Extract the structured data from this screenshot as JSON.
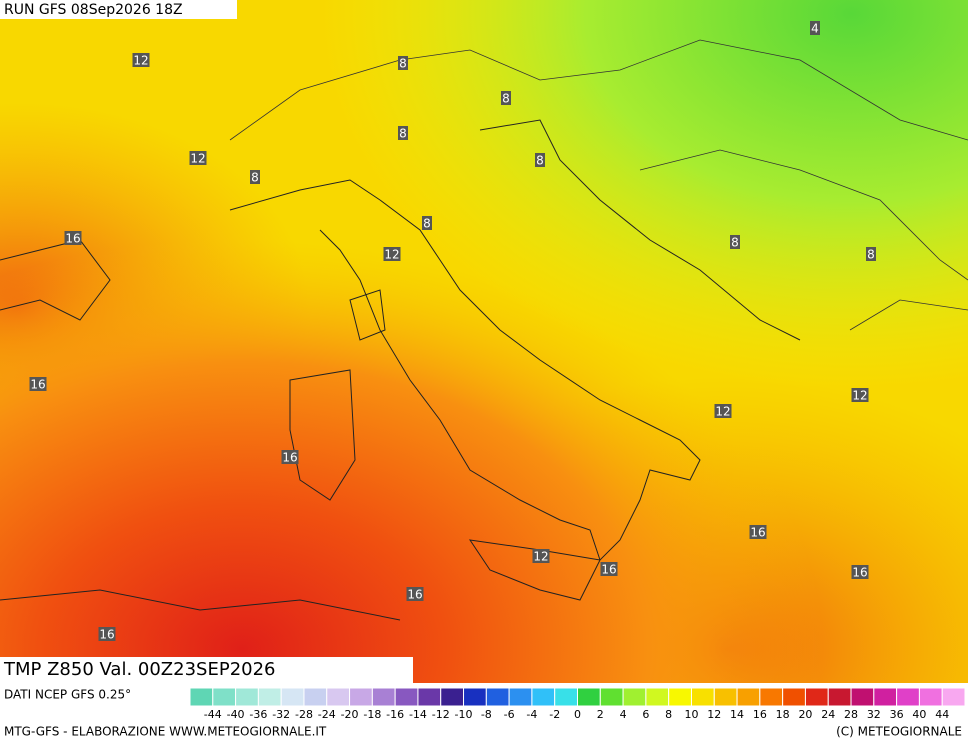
{
  "header": {
    "run": "RUN GFS 08Sep2026 18Z"
  },
  "map": {
    "title": "TMP  Z850  Val.  00Z23SEP2026",
    "contour_labels": [
      12,
      8,
      4,
      8,
      8,
      12,
      8,
      8,
      16,
      8,
      12,
      8,
      8,
      16,
      12,
      12,
      16,
      16,
      12,
      16,
      16,
      16,
      16
    ]
  },
  "legend": {
    "source": "DATI NCEP GFS 0.25°",
    "labels": [
      -44,
      -40,
      -36,
      -32,
      -28,
      -24,
      -20,
      -18,
      -16,
      -14,
      -12,
      -10,
      -8,
      -6,
      -4,
      -2,
      0,
      2,
      4,
      6,
      8,
      10,
      12,
      14,
      16,
      18,
      20,
      24,
      28,
      32,
      36,
      40,
      44
    ],
    "colors": [
      "#5fd6b4",
      "#7fe0c8",
      "#a0e8d8",
      "#c0eee6",
      "#d6e6f4",
      "#c8d0f0",
      "#d8c8f0",
      "#c8a8e6",
      "#a880d4",
      "#8858c0",
      "#6a38a8",
      "#3a2090",
      "#1830c0",
      "#2060e0",
      "#2c90f0",
      "#30c0f8",
      "#38e0e8",
      "#30d040",
      "#60e030",
      "#a0f030",
      "#d0f820",
      "#f8f800",
      "#f8e000",
      "#f8c000",
      "#f8a000",
      "#f87800",
      "#f05000",
      "#e02818",
      "#c81830",
      "#c01070",
      "#d020a0",
      "#e040c8",
      "#f070e0",
      "#f8a8f0"
    ]
  },
  "footer": {
    "left": "MTG-GFS - ELABORAZIONE WWW.METEOGIORNALE.IT",
    "right": "(C) METEOGIORNALE"
  }
}
